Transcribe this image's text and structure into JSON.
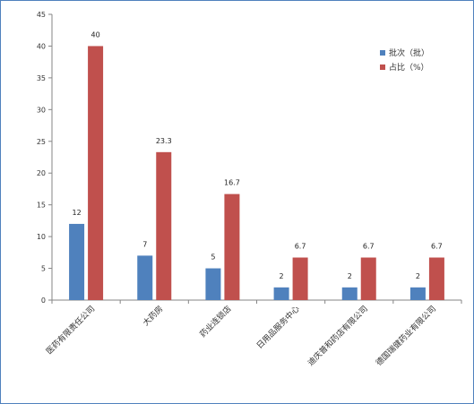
{
  "chart_data": {
    "type": "bar",
    "categories": [
      "医药有限责任公司",
      "大药房",
      "药业连锁店",
      "日用品服务中心",
      "迪庆普和药店有限公司",
      "德国瑞健药业有限公司"
    ],
    "series": [
      {
        "name": "批次（批）",
        "values": [
          12,
          7,
          5,
          2,
          2,
          2
        ],
        "labels": [
          "12",
          "7",
          "5",
          "2",
          "2",
          "2"
        ]
      },
      {
        "name": "占比（%）",
        "values": [
          40,
          23.3,
          16.7,
          6.7,
          6.7,
          6.7
        ],
        "labels": [
          "40",
          "23.3",
          "16.7",
          "6.7",
          "6.7",
          "6.7"
        ]
      }
    ],
    "ylim": [
      0,
      45
    ],
    "yticks": [
      0,
      5,
      10,
      15,
      20,
      25,
      30,
      35,
      40,
      45
    ],
    "grid": false,
    "legend": "top-right",
    "colors": [
      "#4f81bd",
      "#c0504d"
    ]
  }
}
